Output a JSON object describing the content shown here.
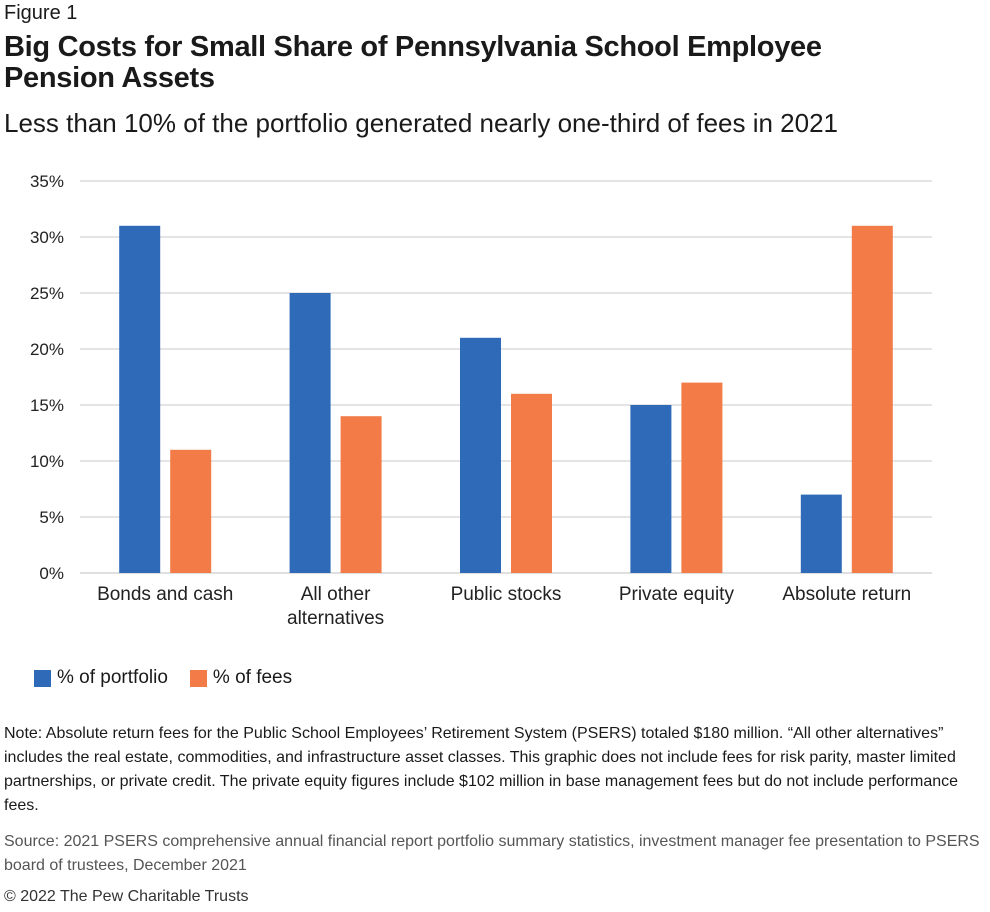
{
  "figure_label": "Figure 1",
  "title": "Big Costs for Small Share of Pennsylvania School Employee Pension Assets",
  "subtitle": "Less than 10% of the portfolio generated nearly one-third of fees in 2021",
  "chart_data": {
    "type": "bar",
    "categories": [
      [
        "Bonds and cash"
      ],
      [
        "All other",
        "alternatives"
      ],
      [
        "Public stocks"
      ],
      [
        "Private equity"
      ],
      [
        "Absolute return"
      ]
    ],
    "series": [
      {
        "name": "% of portfolio",
        "values": [
          31,
          25,
          21,
          15,
          7
        ],
        "color": "#2e6ab7"
      },
      {
        "name": "% of fees",
        "values": [
          11,
          14,
          16,
          17,
          31
        ],
        "color": "#f27b48"
      }
    ],
    "yticks": [
      "0%",
      "5%",
      "10%",
      "15%",
      "20%",
      "25%",
      "30%",
      "35%"
    ],
    "ylim": [
      0,
      35
    ],
    "grid": true,
    "legend_position": "bottom-left"
  },
  "note": "Note: Absolute return fees for the Public School Employees’ Retirement System (PSERS) totaled $180 million. “All other alternatives” includes the real estate, commodities, and infrastructure asset classes. This graphic does not include fees for risk parity, master limited partnerships, or private credit. The private equity figures include $102 million in base management fees but do not include performance fees.",
  "source": "Source: 2021 PSERS comprehensive annual financial report portfolio summary statistics, investment manager fee presentation to PSERS board of trustees, December 2021",
  "copyright": "© 2022 The Pew Charitable Trusts"
}
